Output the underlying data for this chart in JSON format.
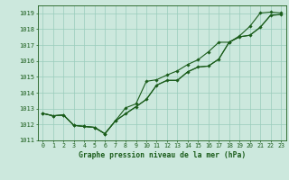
{
  "title": "Graphe pression niveau de la mer (hPa)",
  "bg_color": "#cce8dd",
  "grid_color": "#99ccbb",
  "line_color": "#1a5c1a",
  "xlim": [
    -0.5,
    23.5
  ],
  "ylim": [
    1011.0,
    1019.5
  ],
  "yticks": [
    1011,
    1012,
    1013,
    1014,
    1015,
    1016,
    1017,
    1018,
    1019
  ],
  "xticks": [
    0,
    1,
    2,
    3,
    4,
    5,
    6,
    7,
    8,
    9,
    10,
    11,
    12,
    13,
    14,
    15,
    16,
    17,
    18,
    19,
    20,
    21,
    22,
    23
  ],
  "series_smooth": [
    1012.7,
    1012.55,
    1012.6,
    1011.95,
    1011.88,
    1011.82,
    1011.42,
    1012.22,
    1012.68,
    1013.12,
    1013.58,
    1014.48,
    1014.78,
    1014.78,
    1015.32,
    1015.62,
    1015.68,
    1016.12,
    1017.18,
    1017.52,
    1017.62,
    1018.12,
    1018.88,
    1018.92
  ],
  "series_line2": [
    1012.7,
    1012.55,
    1012.6,
    1011.95,
    1011.88,
    1011.82,
    1011.42,
    1012.22,
    1013.05,
    1013.3,
    1014.72,
    1014.82,
    1015.12,
    1015.38,
    1015.78,
    1016.08,
    1016.58,
    1017.18,
    1017.18,
    1017.58,
    1018.18,
    1019.02,
    1019.08,
    1019.02
  ],
  "series_line3": [
    1012.7,
    1012.55,
    1012.6,
    1011.95,
    1011.88,
    1011.82,
    1011.42,
    1012.22,
    1012.68,
    1013.12,
    1013.58,
    1014.48,
    1014.78,
    1014.78,
    1015.32,
    1015.62,
    1015.68,
    1016.12,
    1017.18,
    1017.52,
    1017.62,
    1018.12,
    1018.88,
    1018.92
  ]
}
